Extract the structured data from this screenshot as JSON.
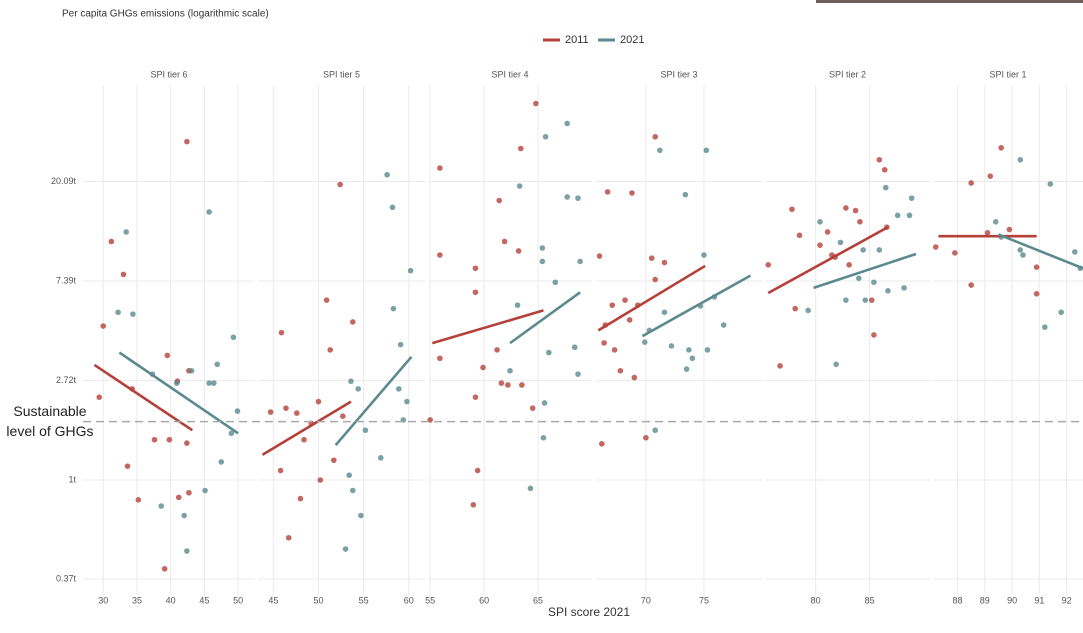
{
  "title": "Per capita GHGs emissions (logarithmic scale)",
  "x_label": "SPI score 2021",
  "ylim": [
    0.315,
    53
  ],
  "yticks": [
    {
      "value": 0.37,
      "label": "0.37t"
    },
    {
      "value": 1,
      "label": "1t"
    },
    {
      "value": 2.72,
      "label": "2.72t"
    },
    {
      "value": 7.39,
      "label": "7.39t"
    },
    {
      "value": 20.09,
      "label": "20.09t"
    }
  ],
  "log_scale": true,
  "grid": true,
  "threshold": {
    "value": 1.8,
    "label": "Sustainable level of GHGs"
  },
  "chart_data": [
    {
      "type": "scatter",
      "title": "SPI tier 6",
      "xlim": [
        27,
        52.5
      ],
      "xticks": [
        30,
        35,
        40,
        45,
        50
      ],
      "series": [
        {
          "name": "2011",
          "color": "#b5403a",
          "x": [
            29.4,
            30,
            31.2,
            33,
            33.6,
            35.2,
            39.5,
            37.6,
            39.8,
            42.4,
            41.2,
            42.7,
            39.1,
            42.4,
            42.7,
            41,
            34.3
          ],
          "values": [
            2.3,
            4.7,
            11,
            7.9,
            1.15,
            0.82,
            3.5,
            1.5,
            1.5,
            30,
            0.84,
            0.88,
            0.41,
            1.45,
            3.0,
            2.7,
            2.5
          ],
          "trend": {
            "x": [
              28.7,
              43.2
            ],
            "values": [
              3.18,
              1.65
            ]
          }
        },
        {
          "name": "2021",
          "color": "#5b8a8e",
          "x": [
            33.4,
            32.2,
            34.4,
            38.6,
            42,
            42.4,
            37.3,
            40.9,
            43.1,
            45.7,
            45.1,
            45.7,
            46.4,
            46.9,
            47.5,
            49,
            49.3,
            49.9
          ],
          "values": [
            12.1,
            5.4,
            5.3,
            0.77,
            0.7,
            0.49,
            2.9,
            2.65,
            3.0,
            14.8,
            0.9,
            2.65,
            2.65,
            3.2,
            1.2,
            1.6,
            4.2,
            2.0
          ],
          "trend": {
            "x": [
              32.4,
              50
            ],
            "values": [
              3.6,
              1.6
            ]
          }
        }
      ]
    },
    {
      "type": "scatter",
      "title": "SPI tier 5",
      "xlim": [
        43.3,
        61.8
      ],
      "xticks": [
        45,
        50,
        55,
        60
      ],
      "series": [
        {
          "name": "2011",
          "color": "#b5403a",
          "x": [
            44.7,
            46.4,
            47.6,
            45.9,
            46.7,
            48,
            45.8,
            49.2,
            50,
            50.2,
            51.3,
            51.7,
            52.4,
            52.7,
            53.8,
            50.9,
            48.4
          ],
          "values": [
            1.98,
            2.06,
            1.96,
            4.4,
            0.56,
            0.83,
            1.1,
            1.77,
            2.2,
            1.0,
            3.7,
            1.22,
            19.5,
            1.9,
            4.9,
            6.1,
            1.5
          ],
          "trend": {
            "x": [
              43.8,
              53.6
            ],
            "values": [
              1.29,
              2.2
            ]
          }
        },
        {
          "name": "2021",
          "color": "#5b8a8e",
          "x": [
            53,
            53.4,
            53.8,
            54.7,
            53.6,
            54.4,
            55.2,
            56.9,
            57.6,
            58.2,
            58.3,
            58.9,
            59.1,
            59.8,
            60.2,
            59.4
          ],
          "values": [
            0.5,
            1.05,
            0.9,
            0.7,
            2.7,
            2.5,
            1.65,
            1.25,
            21.5,
            15.5,
            5.6,
            2.5,
            3.9,
            2.2,
            8.2,
            1.83
          ],
          "trend": {
            "x": [
              51.9,
              60.3
            ],
            "values": [
              1.42,
              3.45
            ]
          }
        }
      ]
    },
    {
      "type": "scatter",
      "title": "SPI tier 4",
      "xlim": [
        54.8,
        70
      ],
      "xticks": [
        55,
        60,
        65
      ],
      "series": [
        {
          "name": "2011",
          "color": "#b5403a",
          "x": [
            55.9,
            55.9,
            55.9,
            55,
            59.2,
            59.2,
            59.9,
            59.4,
            59,
            59.2,
            61.4,
            61.9,
            62.2,
            61.6,
            61.2,
            63.4,
            63.5,
            64.8,
            64.5,
            63.2
          ],
          "values": [
            23,
            9.6,
            3.4,
            1.83,
            8.4,
            6.6,
            3.1,
            1.1,
            0.78,
            2.3,
            16.6,
            11,
            2.6,
            2.65,
            3.7,
            28,
            2.6,
            44,
            2.06,
            10
          ],
          "trend": {
            "x": [
              55.2,
              65.5
            ],
            "values": [
              3.96,
              5.5
            ]
          }
        },
        {
          "name": "2021",
          "color": "#5b8a8e",
          "x": [
            63.3,
            63.1,
            64.3,
            65.4,
            65.4,
            65.7,
            66,
            65.6,
            65.5,
            66.6,
            67.7,
            67.7,
            68.7,
            68.9,
            68.4,
            68.7,
            62.4
          ],
          "values": [
            19.2,
            5.8,
            0.92,
            9.0,
            10.3,
            31.5,
            3.6,
            2.17,
            1.53,
            7.3,
            36,
            17.2,
            17,
            9,
            3.8,
            2.9,
            3.0
          ],
          "trend": {
            "x": [
              62.4,
              68.9
            ],
            "values": [
              3.96,
              6.6
            ]
          }
        }
      ]
    },
    {
      "type": "scatter",
      "title": "SPI tier 3",
      "xlim": [
        65.7,
        80
      ],
      "xticks": [
        70,
        75
      ],
      "series": [
        {
          "name": "2011",
          "color": "#b5403a",
          "x": [
            66,
            66.7,
            67.1,
            66.5,
            66.4,
            67.3,
            67.8,
            68.6,
            68.8,
            69.3,
            69,
            68.2,
            66.2,
            70.8,
            70.5,
            70.8,
            71.6,
            70
          ],
          "values": [
            9.5,
            18.1,
            5.8,
            4.75,
            3.97,
            3.7,
            3.0,
            5.0,
            17.9,
            5.8,
            2.8,
            6.1,
            1.44,
            31.5,
            9.3,
            7.5,
            8.9,
            1.53
          ],
          "trend": {
            "x": [
              65.9,
              75.1
            ],
            "values": [
              4.5,
              8.6
            ]
          }
        },
        {
          "name": "2021",
          "color": "#5b8a8e",
          "x": [
            70.3,
            70.8,
            69.9,
            71.2,
            71.6,
            72.2,
            73.4,
            73.7,
            74,
            75,
            75.2,
            75.3,
            75.9,
            76.7,
            74.7,
            73.5
          ],
          "values": [
            4.5,
            1.65,
            4.0,
            27.5,
            5.4,
            3.85,
            17.6,
            3.7,
            3.4,
            9.6,
            27.5,
            3.7,
            6.3,
            4.75,
            5.75,
            3.05
          ],
          "trend": {
            "x": [
              69.7,
              79
            ],
            "values": [
              4.25,
              7.8
            ]
          }
        }
      ]
    },
    {
      "type": "scatter",
      "title": "SPI tier 2",
      "xlim": [
        75.3,
        90.6
      ],
      "xticks": [
        80,
        85
      ],
      "series": [
        {
          "name": "2011",
          "color": "#b5403a",
          "x": [
            75.6,
            76.7,
            77.8,
            78.1,
            78.5,
            80.4,
            81.1,
            81.5,
            81.8,
            82.8,
            83.1,
            83.7,
            84.1,
            85.2,
            85.4,
            85.9,
            86.4,
            86.6
          ],
          "values": [
            8.7,
            3.15,
            15.2,
            5.6,
            11.7,
            10.6,
            12.1,
            9.6,
            9.4,
            15.4,
            8.7,
            15,
            13.4,
            6.1,
            4.3,
            25,
            22.6,
            12.7
          ],
          "trend": {
            "x": [
              75.6,
              86.7
            ],
            "values": [
              6.55,
              12.7
            ]
          }
        },
        {
          "name": "2021",
          "color": "#5b8a8e",
          "x": [
            79.3,
            80.4,
            81.9,
            82.3,
            82.8,
            84,
            84.4,
            84.6,
            85.4,
            85.9,
            86.5,
            86.7,
            87.6,
            88.2,
            88.7,
            88.9
          ],
          "values": [
            5.5,
            13.4,
            3.2,
            10.9,
            6.1,
            7.6,
            10.1,
            6.1,
            7.3,
            10.1,
            18.9,
            6.7,
            14.3,
            6.9,
            14.3,
            17
          ],
          "trend": {
            "x": [
              79.8,
              89.3
            ],
            "values": [
              6.9,
              9.7
            ]
          }
        }
      ]
    },
    {
      "type": "scatter",
      "title": "SPI tier 1",
      "xlim": [
        87.1,
        92.6
      ],
      "xticks": [
        88,
        89,
        90,
        91,
        92
      ],
      "series": [
        {
          "name": "2011",
          "color": "#b5403a",
          "x": [
            87.2,
            87.9,
            88.5,
            88.5,
            89.1,
            89.2,
            89.6,
            89.9,
            90.9,
            90.9
          ],
          "values": [
            10.4,
            9.8,
            7.1,
            19.8,
            12,
            21.2,
            28.2,
            12.4,
            8.5,
            6.5
          ],
          "trend": {
            "x": [
              87.3,
              90.9
            ],
            "values": [
              11.6,
              11.6
            ]
          }
        },
        {
          "name": "2021",
          "color": "#5b8a8e",
          "x": [
            89.4,
            89.6,
            90.3,
            90.3,
            90.4,
            91.2,
            91.4,
            91.8,
            92.3,
            92.5
          ],
          "values": [
            13.4,
            11.5,
            25,
            10.1,
            9.6,
            4.65,
            19.6,
            5.4,
            9.9,
            8.4
          ],
          "trend": {
            "x": [
              89.5,
              92.6
            ],
            "values": [
              11.8,
              8.4
            ]
          }
        }
      ]
    }
  ]
}
